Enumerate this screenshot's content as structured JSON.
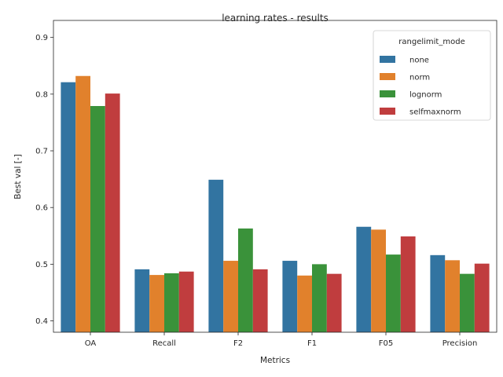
{
  "chart_data": {
    "type": "bar",
    "title": "learning rates - results",
    "xlabel": "Metrics",
    "ylabel": "Best val [-]",
    "ylim": [
      0.38,
      0.93
    ],
    "yticks": [
      0.4,
      0.5,
      0.6,
      0.7,
      0.8,
      0.9
    ],
    "categories": [
      "OA",
      "Recall",
      "F2",
      "F1",
      "F05",
      "Precision"
    ],
    "legend": {
      "title": "rangelimit_mode",
      "placement": "top-right"
    },
    "series": [
      {
        "name": "none",
        "color": "#3274a1",
        "values": [
          0.821,
          0.491,
          0.649,
          0.506,
          0.566,
          0.516
        ]
      },
      {
        "name": "norm",
        "color": "#e1812c",
        "values": [
          0.832,
          0.481,
          0.506,
          0.48,
          0.561,
          0.507
        ]
      },
      {
        "name": "lognorm",
        "color": "#3a923a",
        "values": [
          0.779,
          0.484,
          0.563,
          0.5,
          0.517,
          0.483
        ]
      },
      {
        "name": "selfmaxnorm",
        "color": "#c03d3e",
        "values": [
          0.801,
          0.487,
          0.491,
          0.483,
          0.549,
          0.501
        ]
      }
    ]
  }
}
